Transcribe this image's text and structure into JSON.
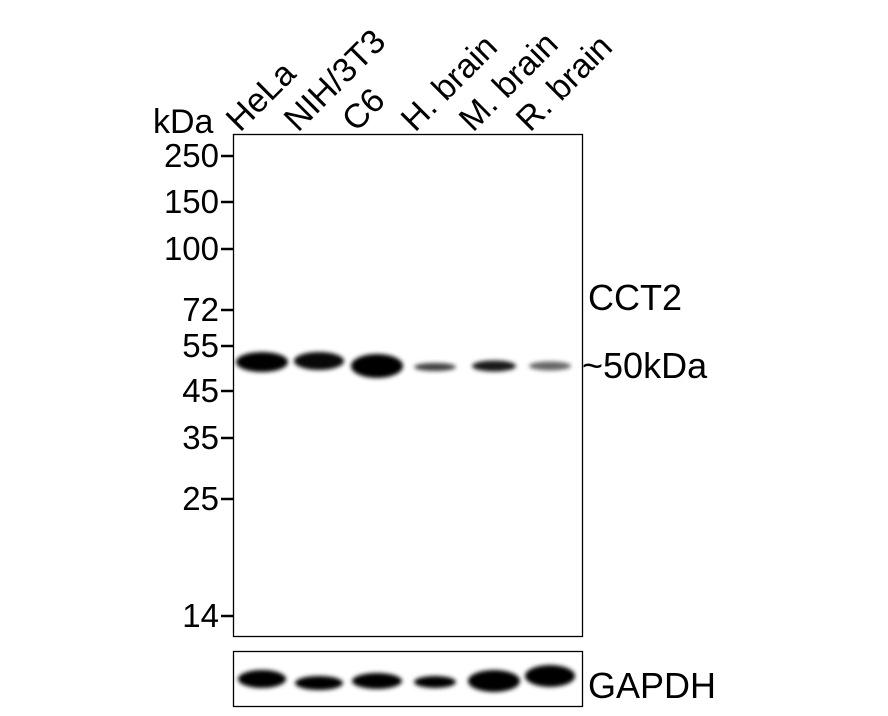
{
  "unit_label": "kDa",
  "lanes": [
    "HeLa",
    "NIH/3T3",
    "C6",
    "H. brain",
    "M. brain",
    "R. brain"
  ],
  "markers": [
    "250",
    "150",
    "100",
    "72",
    "55",
    "45",
    "35",
    "25",
    "14"
  ],
  "target": {
    "name": "CCT2",
    "size": "~50kDa"
  },
  "loading_control": "GAPDH"
}
